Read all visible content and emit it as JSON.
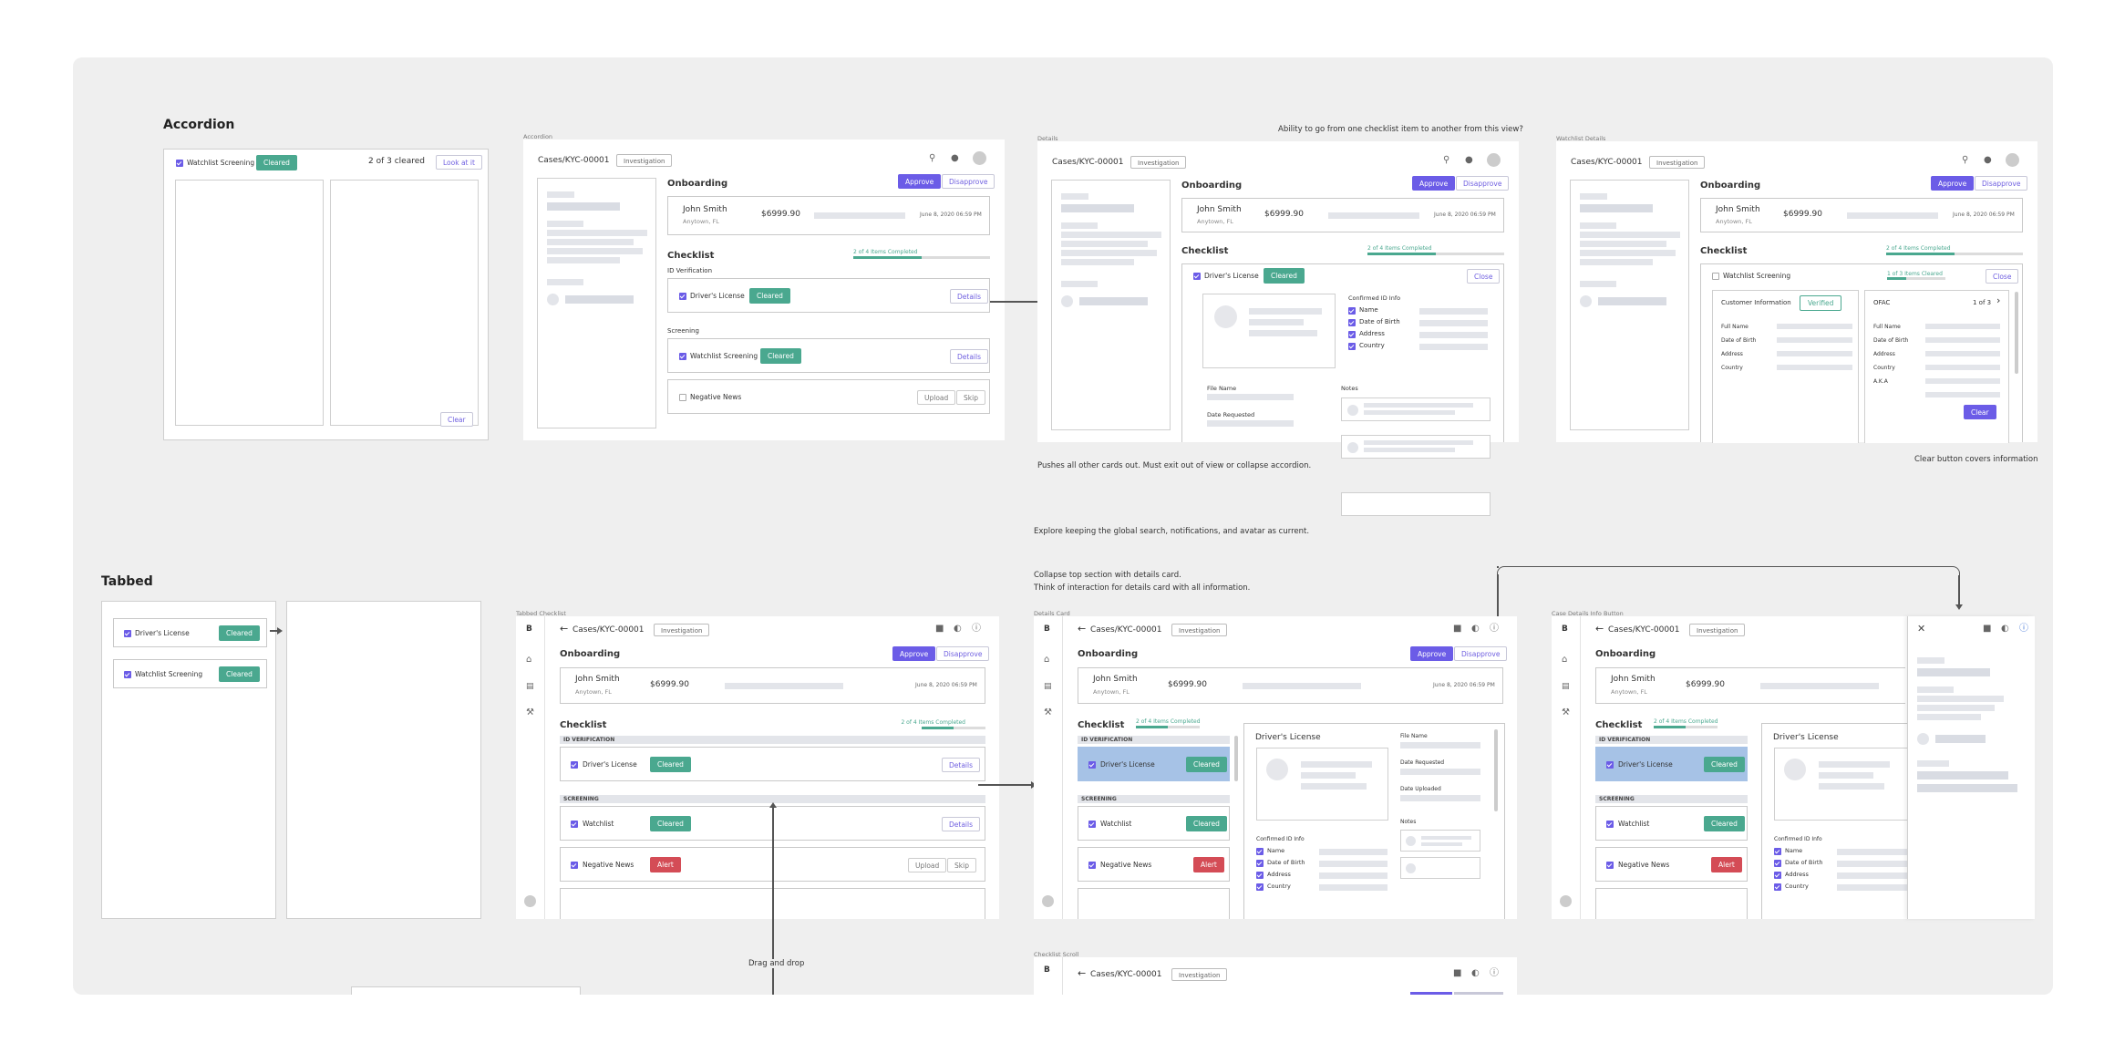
{
  "sections": {
    "accordion": "Accordion",
    "tabbed": "Tabbed"
  },
  "frame_labels": {
    "accordion": "Accordion",
    "details": "Details",
    "watchlist_details": "Watchlist Details",
    "tabbed_checklist": "Tabbed Checklist",
    "details_card": "Details Card",
    "case_details_info_button": "Case Details Info Button",
    "checklist_scroll": "Checklist Scroll"
  },
  "notes": {
    "go_between": "Ability to go from one checklist item to another from this view?",
    "pushes": "Pushes all other cards out. Must exit out of view or collapse accordion.",
    "clear_covers": "Clear button covers information",
    "explore": "Explore keeping the global search, notifications, and avatar as current.",
    "collapse1": "Collapse top section with details card.",
    "collapse2": "Think of interaction for details card with all information.",
    "drag_drop": "Drag and drop"
  },
  "accordion_card": {
    "item": "Watchlist Screening",
    "badge": "Cleared",
    "count": "2 of 3 cleared",
    "look": "Look at it",
    "clear": "Clear"
  },
  "tabbed_card": {
    "item1": "Driver's License",
    "item2": "Watchlist Screening",
    "badge": "Cleared"
  },
  "app": {
    "logo": "B",
    "breadcrumb": "Cases/KYC-00001",
    "tag": "Investigation",
    "section": "Onboarding",
    "approve": "Approve",
    "disapprove": "Disapprove",
    "name": "John Smith",
    "location": "Anytown, FL",
    "amount": "$6999.90",
    "date": "June 8, 2020 06:59 PM",
    "checklist": "Checklist",
    "progress": "2 of 4 Items Completed",
    "progress_value": 0.5,
    "id_verification": "ID Verification",
    "id_verification_caps": "ID VERIFICATION",
    "screening": "Screening",
    "screening_caps": "SCREENING",
    "drivers_license": "Driver's License",
    "watchlist_screening": "Watchlist Screening",
    "watchlist": "Watchlist",
    "negative_news": "Negative News",
    "cleared": "Cleared",
    "alert": "Alert",
    "details": "Details",
    "upload": "Upload",
    "skip": "Skip",
    "close": "Close"
  },
  "details_view": {
    "confirmed": "Confirmed ID Info",
    "fields": [
      "Name",
      "Date of Birth",
      "Address",
      "Country"
    ],
    "file_name": "File Name",
    "date_requested": "Date Requested",
    "date_uploaded": "Date Uploaded",
    "notes": "Notes"
  },
  "watchlist_view": {
    "progress": "1 of 3 Items Cleared",
    "customer_info": "Customer Information",
    "verified": "Verified",
    "fields": [
      "Full Name",
      "Date of Birth",
      "Address",
      "Country"
    ],
    "ofac": "OFAC",
    "pager": "1 of 3",
    "ofac_fields": [
      "Full Name",
      "Date of Birth",
      "Address",
      "Country",
      "A.K.A"
    ],
    "clear": "Clear"
  }
}
